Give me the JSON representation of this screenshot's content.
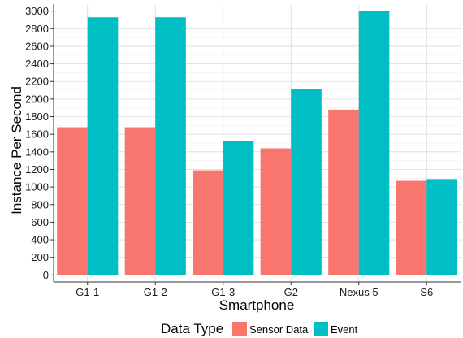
{
  "chart_data": {
    "type": "bar",
    "title": "",
    "xlabel": "Smartphone",
    "ylabel": "Instance Per Second",
    "categories": [
      "G1-1",
      "G1-2",
      "G1-3",
      "G2",
      "Nexus 5",
      "S6"
    ],
    "series": [
      {
        "name": "Sensor Data",
        "color": "#F8766D",
        "values": [
          1680,
          1680,
          1190,
          1440,
          1880,
          1070
        ]
      },
      {
        "name": "Event",
        "color": "#00BFC4",
        "values": [
          2930,
          2930,
          1520,
          2110,
          3000,
          1090
        ]
      }
    ],
    "ylim": [
      -80,
      3080
    ],
    "yticks": [
      0,
      200,
      400,
      600,
      800,
      1000,
      1200,
      1400,
      1600,
      1800,
      2000,
      2200,
      2400,
      2600,
      2800,
      3000
    ],
    "grid": true,
    "legend": {
      "title": "Data Type",
      "position": "bottom"
    }
  }
}
